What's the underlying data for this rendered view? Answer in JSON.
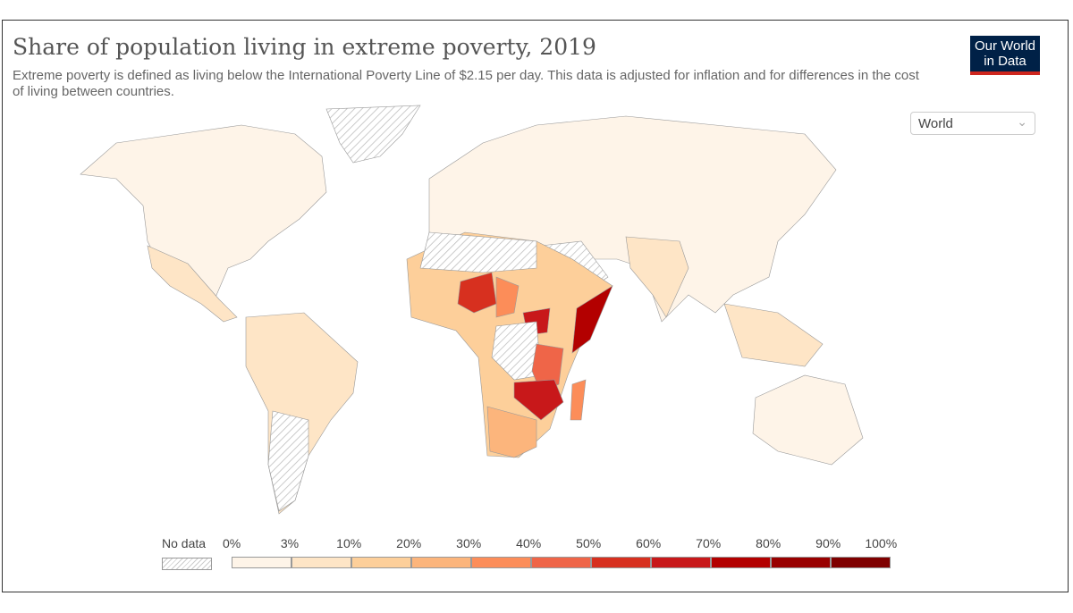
{
  "header": {
    "title": "Share of population living in extreme poverty, 2019",
    "subtitle": "Extreme poverty is defined as living below the International Poverty Line of $2.15 per day. This data is adjusted for inflation and for differences in the cost of living between countries.",
    "logo": "Our World in Data"
  },
  "region_select": {
    "value": "World",
    "icon": "chevron-down-icon"
  },
  "legend": {
    "no_data_label": "No data",
    "ticks": [
      "0%",
      "3%",
      "10%",
      "20%",
      "30%",
      "40%",
      "50%",
      "60%",
      "70%",
      "80%",
      "90%",
      "100%"
    ],
    "colors": [
      "#fef4e8",
      "#fee5c6",
      "#fdcf9a",
      "#fcb57c",
      "#fc8d59",
      "#ef6548",
      "#d7301f",
      "#c8181a",
      "#b30000",
      "#990000",
      "#7f0000"
    ]
  }
}
